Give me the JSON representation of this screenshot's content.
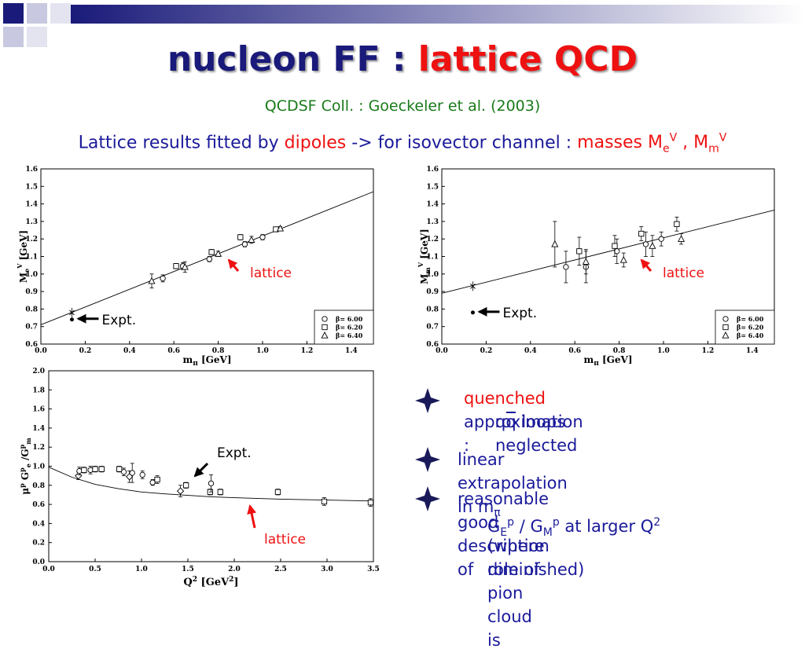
{
  "title": {
    "part1": "nucleon FF : ",
    "part2": "lattice QCD"
  },
  "subtitle": "QCDSF Coll. : Goeckeler et al.  (2003)",
  "lead": {
    "prefix": "Lattice results fitted by ",
    "dipoles": "dipoles",
    "middle": " -> for isovector channel : ",
    "masses": "masses M",
    "sub_e": "e",
    "sup_v1": "V",
    "comma": " , M",
    "sub_m": "m",
    "sup_v2": "V"
  },
  "colors": {
    "title_blue": "#1a1a7a",
    "red": "#ee1111",
    "green": "#1a7a1a",
    "text_blue": "#1a1a9a",
    "star": "#1a1a5a"
  },
  "bullets": [
    {
      "icon": "four-point-star-icon",
      "prefix_red": "quenched",
      "text": " approximation :",
      "line2": "qq loops neglected"
    },
    {
      "icon": "four-point-star-icon",
      "text": "linear extrapolation in m",
      "sub": "π"
    },
    {
      "icon": "four-point-star-icon",
      "line1": "reasonable good description of",
      "line2a": "G",
      "line2b": "E",
      "line2c": "p",
      "line2d": " / G",
      "line2e": "M",
      "line2f": "p",
      "line2g": "  at larger Q",
      "line2h": "2",
      "line3": "(where role of pion cloud is",
      "line4": "diminished)"
    }
  ],
  "chart_data": [
    {
      "type": "scatter",
      "xlabel": "m",
      "xlabel_sub": "π",
      "xlabel_unit": " [GeV]",
      "ylabel": "M",
      "ylabel_sub": "e",
      "ylabel_sup": "V",
      "ylabel_unit": " [GeV]",
      "xlim": [
        0.0,
        1.5
      ],
      "ylim": [
        0.6,
        1.6
      ],
      "xticks": [
        "0.0",
        "0.2",
        "0.4",
        "0.6",
        "0.8",
        "1.0",
        "1.2",
        "1.4"
      ],
      "yticks": [
        "0.6",
        "0.7",
        "0.8",
        "0.9",
        "1.0",
        "1.1",
        "1.2",
        "1.3",
        "1.4",
        "1.5",
        "1.6"
      ],
      "fit_line": {
        "x": [
          0.0,
          1.5
        ],
        "y": [
          0.71,
          1.47
        ]
      },
      "series": [
        {
          "name": "β= 6.00",
          "marker": "circle",
          "points": [
            [
              0.55,
              0.975,
              0.02
            ],
            [
              0.64,
              1.045,
              0.02
            ],
            [
              0.76,
              1.085,
              0.015
            ],
            [
              0.92,
              1.17,
              0.015
            ],
            [
              1.0,
              1.21,
              0.015
            ]
          ]
        },
        {
          "name": "β= 6.20",
          "marker": "square",
          "points": [
            [
              0.61,
              1.045,
              0.015
            ],
            [
              0.77,
              1.125,
              0.015
            ],
            [
              0.9,
              1.21,
              0.015
            ],
            [
              1.06,
              1.255,
              0.01
            ]
          ]
        },
        {
          "name": "β= 6.40",
          "marker": "triangle",
          "points": [
            [
              0.5,
              0.96,
              0.04
            ],
            [
              0.65,
              1.04,
              0.03
            ],
            [
              0.8,
              1.115,
              0.015
            ],
            [
              0.95,
              1.195,
              0.02
            ],
            [
              1.08,
              1.26,
              0.01
            ]
          ]
        }
      ],
      "expt_point": {
        "x": 0.14,
        "y": 0.78
      },
      "expt_dot": {
        "x": 0.14,
        "y": 0.74
      },
      "annotations": {
        "expt": "Expt.",
        "lattice": "lattice"
      }
    },
    {
      "type": "scatter",
      "xlabel": "m",
      "xlabel_sub": "π",
      "xlabel_unit": " [GeV]",
      "ylabel": "M",
      "ylabel_sub": "m",
      "ylabel_sup": "V",
      "ylabel_unit": " [GeV]",
      "xlim": [
        0.0,
        1.5
      ],
      "ylim": [
        0.6,
        1.6
      ],
      "xticks": [
        "0.0",
        "0.2",
        "0.4",
        "0.6",
        "0.8",
        "1.0",
        "1.2",
        "1.4"
      ],
      "yticks": [
        "0.6",
        "0.7",
        "0.8",
        "0.9",
        "1.0",
        "1.1",
        "1.2",
        "1.3",
        "1.4",
        "1.5",
        "1.6"
      ],
      "fit_line": {
        "x": [
          0.0,
          1.5
        ],
        "y": [
          0.89,
          1.365
        ]
      },
      "series": [
        {
          "name": "β= 6.00",
          "marker": "circle",
          "points": [
            [
              0.56,
              1.04,
              0.09
            ],
            [
              0.65,
              1.04,
              0.09
            ],
            [
              0.79,
              1.13,
              0.07
            ],
            [
              0.92,
              1.17,
              0.07
            ],
            [
              0.99,
              1.2,
              0.04
            ]
          ]
        },
        {
          "name": "β= 6.20",
          "marker": "square",
          "points": [
            [
              0.62,
              1.13,
              0.08
            ],
            [
              0.78,
              1.16,
              0.06
            ],
            [
              0.9,
              1.23,
              0.04
            ],
            [
              1.06,
              1.285,
              0.04
            ]
          ]
        },
        {
          "name": "β= 6.40",
          "marker": "triangle",
          "points": [
            [
              0.51,
              1.17,
              0.13
            ],
            [
              0.65,
              1.07,
              0.07
            ],
            [
              0.82,
              1.08,
              0.04
            ],
            [
              0.95,
              1.16,
              0.06
            ],
            [
              1.08,
              1.2,
              0.03
            ]
          ]
        }
      ],
      "expt_point": {
        "x": 0.14,
        "y": 0.93
      },
      "expt_dot": {
        "x": 0.14,
        "y": 0.78
      },
      "annotations": {
        "expt": "Expt.",
        "lattice": "lattice"
      }
    },
    {
      "type": "scatter",
      "xlabel": "Q",
      "xlabel_sup": "2",
      "xlabel_unit": " [GeV",
      "xlabel_unit_sup": "2",
      "xlabel_unit_end": "]",
      "ylabel_parts": [
        "μ",
        "p",
        " G",
        "p",
        "e",
        " /G",
        "p",
        "m"
      ],
      "xlim": [
        0.0,
        3.5
      ],
      "ylim": [
        0.0,
        2.0
      ],
      "xticks": [
        "0.0",
        "0.5",
        "1.0",
        "1.5",
        "2.0",
        "2.5",
        "3.0",
        "3.5"
      ],
      "yticks": [
        "0.0",
        "0.2",
        "0.4",
        "0.6",
        "0.8",
        "1.0",
        "1.2",
        "1.4",
        "1.6",
        "1.8",
        "2.0"
      ],
      "curve": {
        "x": [
          0.0,
          0.25,
          0.5,
          0.75,
          1.0,
          1.25,
          1.5,
          1.75,
          2.0,
          2.5,
          3.0,
          3.5
        ],
        "y": [
          0.99,
          0.885,
          0.81,
          0.765,
          0.73,
          0.71,
          0.695,
          0.68,
          0.67,
          0.655,
          0.645,
          0.635
        ]
      },
      "points": [
        {
          "x": 0.32,
          "y": 0.9,
          "e": 0.04,
          "m": "diamond"
        },
        {
          "x": 0.33,
          "y": 0.95,
          "e": 0.04,
          "m": "circle"
        },
        {
          "x": 0.38,
          "y": 0.96,
          "e": 0.03,
          "m": "square"
        },
        {
          "x": 0.45,
          "y": 0.96,
          "e": 0.04,
          "m": "circle"
        },
        {
          "x": 0.5,
          "y": 0.97,
          "e": 0.03,
          "m": "square"
        },
        {
          "x": 0.57,
          "y": 0.97,
          "e": 0.03,
          "m": "square"
        },
        {
          "x": 0.76,
          "y": 0.97,
          "e": 0.03,
          "m": "square"
        },
        {
          "x": 0.81,
          "y": 0.94,
          "e": 0.04,
          "m": "circle"
        },
        {
          "x": 0.87,
          "y": 0.89,
          "e": 0.06,
          "m": "diamond"
        },
        {
          "x": 0.9,
          "y": 0.93,
          "e": 0.1,
          "m": "circle"
        },
        {
          "x": 1.01,
          "y": 0.91,
          "e": 0.04,
          "m": "circle"
        },
        {
          "x": 1.12,
          "y": 0.83,
          "e": 0.03,
          "m": "circle"
        },
        {
          "x": 1.17,
          "y": 0.86,
          "e": 0.04,
          "m": "square"
        },
        {
          "x": 1.42,
          "y": 0.74,
          "e": 0.06,
          "m": "diamond"
        },
        {
          "x": 1.48,
          "y": 0.8,
          "e": 0.03,
          "m": "square"
        },
        {
          "x": 1.74,
          "y": 0.73,
          "e": 0.03,
          "m": "square"
        },
        {
          "x": 1.75,
          "y": 0.82,
          "e": 0.09,
          "m": "circle"
        },
        {
          "x": 1.85,
          "y": 0.73,
          "e": 0.03,
          "m": "square"
        },
        {
          "x": 2.47,
          "y": 0.73,
          "e": 0.03,
          "m": "square"
        },
        {
          "x": 2.97,
          "y": 0.63,
          "e": 0.04,
          "m": "square"
        },
        {
          "x": 3.47,
          "y": 0.62,
          "e": 0.04,
          "m": "square"
        }
      ],
      "annotations": {
        "expt": "Expt.",
        "lattice": "lattice"
      }
    }
  ]
}
